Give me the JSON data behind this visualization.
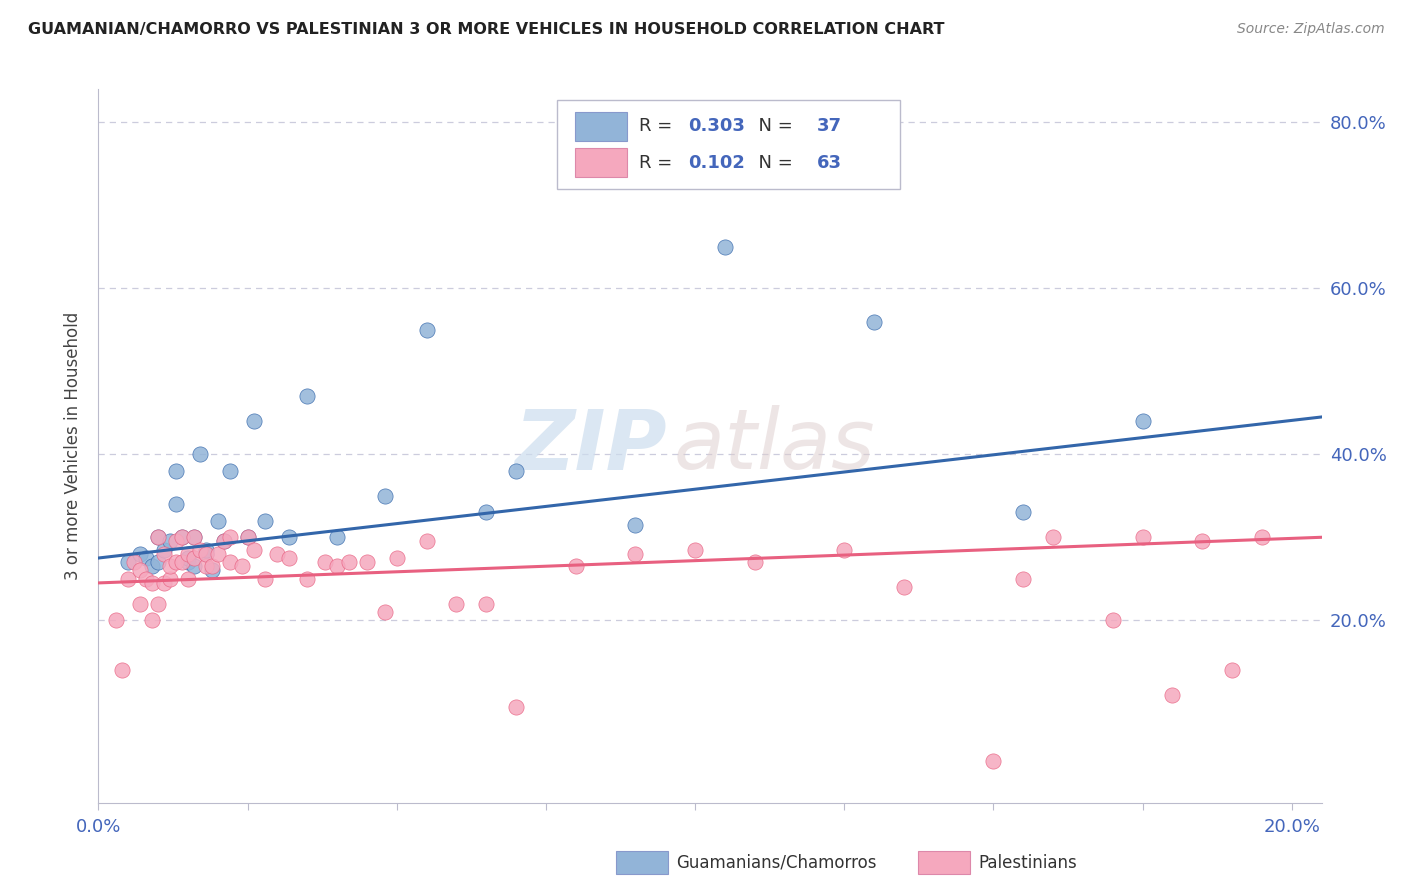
{
  "title": "GUAMANIAN/CHAMORRO VS PALESTINIAN 3 OR MORE VEHICLES IN HOUSEHOLD CORRELATION CHART",
  "source": "Source: ZipAtlas.com",
  "ylabel": "3 or more Vehicles in Household",
  "xlim": [
    0.0,
    0.205
  ],
  "ylim": [
    -0.02,
    0.84
  ],
  "xtick_positions": [
    0.0,
    0.025,
    0.05,
    0.075,
    0.1,
    0.125,
    0.15,
    0.175,
    0.2
  ],
  "xtick_labels": [
    "0.0%",
    "",
    "",
    "",
    "",
    "",
    "",
    "",
    "20.0%"
  ],
  "ytick_positions": [
    0.2,
    0.4,
    0.6,
    0.8
  ],
  "ytick_labels": [
    "20.0%",
    "40.0%",
    "60.0%",
    "80.0%"
  ],
  "blue_color": "#92B4D8",
  "pink_color": "#F5A8BE",
  "blue_line_color": "#3366AA",
  "pink_line_color": "#E86080",
  "label_color": "#4466BB",
  "R_blue": 0.303,
  "N_blue": 37,
  "R_pink": 0.102,
  "N_pink": 63,
  "watermark_zip": "ZIP",
  "watermark_atlas": "atlas",
  "grid_color": "#CCCCDD",
  "blue_scatter_x": [
    0.005,
    0.007,
    0.008,
    0.009,
    0.01,
    0.01,
    0.011,
    0.012,
    0.013,
    0.013,
    0.014,
    0.015,
    0.015,
    0.016,
    0.016,
    0.017,
    0.018,
    0.018,
    0.019,
    0.02,
    0.021,
    0.022,
    0.025,
    0.026,
    0.028,
    0.032,
    0.035,
    0.04,
    0.048,
    0.055,
    0.065,
    0.07,
    0.09,
    0.105,
    0.13,
    0.155,
    0.175
  ],
  "blue_scatter_y": [
    0.27,
    0.28,
    0.275,
    0.265,
    0.3,
    0.27,
    0.285,
    0.295,
    0.34,
    0.38,
    0.3,
    0.27,
    0.275,
    0.3,
    0.265,
    0.4,
    0.28,
    0.285,
    0.26,
    0.32,
    0.295,
    0.38,
    0.3,
    0.44,
    0.32,
    0.3,
    0.47,
    0.3,
    0.35,
    0.55,
    0.33,
    0.38,
    0.315,
    0.65,
    0.56,
    0.33,
    0.44
  ],
  "pink_scatter_x": [
    0.003,
    0.004,
    0.005,
    0.006,
    0.007,
    0.007,
    0.008,
    0.009,
    0.009,
    0.01,
    0.01,
    0.011,
    0.011,
    0.012,
    0.012,
    0.013,
    0.013,
    0.014,
    0.014,
    0.015,
    0.015,
    0.016,
    0.016,
    0.017,
    0.018,
    0.018,
    0.019,
    0.02,
    0.021,
    0.022,
    0.022,
    0.024,
    0.025,
    0.026,
    0.028,
    0.03,
    0.032,
    0.035,
    0.038,
    0.04,
    0.042,
    0.045,
    0.048,
    0.05,
    0.055,
    0.06,
    0.065,
    0.07,
    0.08,
    0.09,
    0.1,
    0.11,
    0.125,
    0.135,
    0.15,
    0.155,
    0.16,
    0.17,
    0.175,
    0.18,
    0.185,
    0.19,
    0.195
  ],
  "pink_scatter_y": [
    0.2,
    0.14,
    0.25,
    0.27,
    0.22,
    0.26,
    0.25,
    0.2,
    0.245,
    0.22,
    0.3,
    0.245,
    0.28,
    0.25,
    0.265,
    0.27,
    0.295,
    0.27,
    0.3,
    0.25,
    0.28,
    0.275,
    0.3,
    0.285,
    0.265,
    0.28,
    0.265,
    0.28,
    0.295,
    0.3,
    0.27,
    0.265,
    0.3,
    0.285,
    0.25,
    0.28,
    0.275,
    0.25,
    0.27,
    0.265,
    0.27,
    0.27,
    0.21,
    0.275,
    0.295,
    0.22,
    0.22,
    0.095,
    0.265,
    0.28,
    0.285,
    0.27,
    0.285,
    0.24,
    0.03,
    0.25,
    0.3,
    0.2,
    0.3,
    0.11,
    0.295,
    0.14,
    0.3
  ]
}
